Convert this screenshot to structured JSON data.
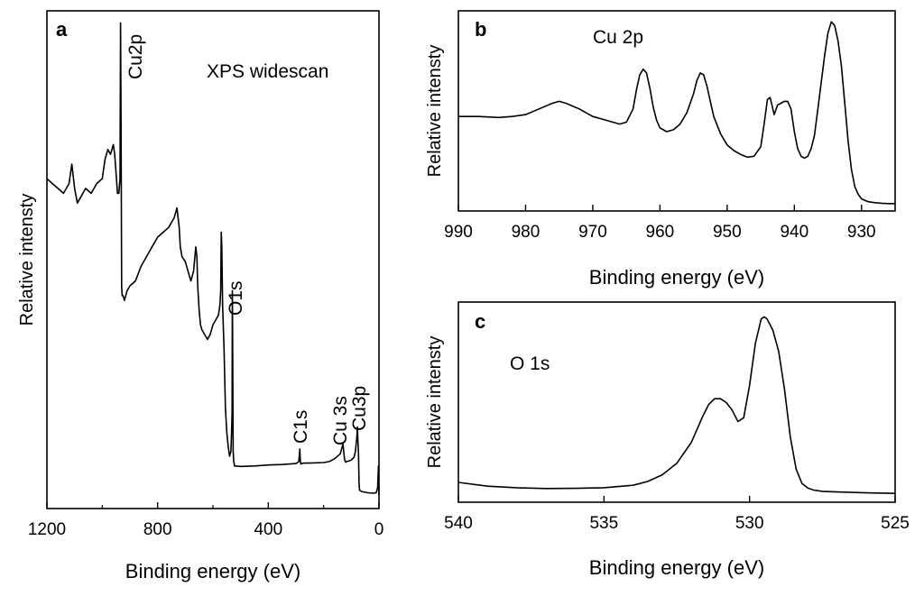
{
  "chart_data": [
    {
      "id": "a",
      "type": "line",
      "panel_label": "a",
      "title": "XPS widescan",
      "xlabel": "Binding energy (eV)",
      "ylabel": "Relative intensty",
      "xlim": [
        1200,
        0
      ],
      "ylim": [
        0,
        100
      ],
      "x_ticks": [
        1200,
        800,
        400,
        0
      ],
      "x_tick_labels": [
        "1200",
        "800",
        "400",
        "0"
      ],
      "annotations": [
        {
          "text": "Cu2p",
          "x": 935,
          "y": 96
        },
        {
          "text": "O1s",
          "x": 530,
          "y": 46
        },
        {
          "text": "C1s",
          "x": 285,
          "y": 8
        },
        {
          "text": "Cu 3s",
          "x": 123,
          "y": 8
        },
        {
          "text": "Cu3p",
          "x": 78,
          "y": 8
        }
      ],
      "series": [
        {
          "name": "widescan",
          "x": [
            1200,
            1180,
            1160,
            1140,
            1120,
            1110,
            1100,
            1090,
            1080,
            1060,
            1040,
            1020,
            1000,
            990,
            980,
            970,
            960,
            955,
            950,
            945,
            940,
            936,
            934,
            932,
            930,
            928,
            925,
            920,
            910,
            900,
            880,
            860,
            840,
            820,
            800,
            780,
            760,
            740,
            730,
            722,
            718,
            712,
            700,
            690,
            680,
            670,
            662,
            658,
            655,
            650,
            645,
            640,
            630,
            620,
            610,
            600,
            590,
            580,
            575,
            572,
            570,
            568,
            565,
            560,
            555,
            550,
            545,
            540,
            535,
            533,
            531,
            530,
            529,
            527,
            525,
            522,
            520,
            500,
            450,
            400,
            350,
            300,
            290,
            286,
            284,
            282,
            280,
            270,
            250,
            200,
            180,
            160,
            140,
            130,
            125,
            122,
            120,
            118,
            110,
            100,
            90,
            85,
            80,
            78,
            76,
            74,
            72,
            70,
            60,
            40,
            20,
            10,
            5,
            2,
            0
          ],
          "y": [
            67,
            66,
            65,
            64,
            66,
            70,
            65,
            62,
            63,
            65,
            64,
            66,
            67,
            71,
            73,
            72,
            74,
            72,
            68,
            64,
            64,
            67,
            99,
            77,
            45,
            43,
            43,
            42,
            44,
            45,
            46,
            49,
            51,
            53,
            55,
            56,
            57,
            59,
            61,
            57,
            53,
            51,
            50,
            48,
            46,
            48,
            53,
            51,
            45,
            40,
            37,
            36,
            35,
            34,
            35,
            37,
            38,
            39,
            41,
            44,
            56,
            53,
            41,
            32,
            20,
            15,
            12,
            10,
            11,
            14,
            19,
            44,
            34,
            11,
            9,
            8,
            8,
            7.9,
            8,
            8.2,
            8.3,
            8.5,
            8.9,
            11.5,
            8.8,
            8.4,
            8.5,
            8.6,
            8.6,
            8.7,
            8.9,
            9.5,
            10.5,
            12.5,
            9.5,
            8.9,
            8.8,
            8.9,
            9,
            9.2,
            9.8,
            11,
            14,
            16,
            13,
            10.5,
            4.5,
            3,
            2.7,
            2.5,
            2.4,
            2.5,
            3.5,
            8,
            2
          ]
        }
      ]
    },
    {
      "id": "b",
      "type": "line",
      "panel_label": "b",
      "title": "Cu 2p",
      "xlabel": "Binding energy (eV)",
      "ylabel": "Relative intensty",
      "xlim": [
        990,
        925
      ],
      "ylim": [
        0,
        100
      ],
      "x_ticks": [
        990,
        980,
        970,
        960,
        950,
        940,
        930
      ],
      "x_tick_labels": [
        "990",
        "980",
        "970",
        "960",
        "950",
        "940",
        "930"
      ],
      "series": [
        {
          "name": "Cu 2p",
          "x": [
            990,
            987,
            984,
            982,
            980,
            978,
            976,
            975,
            974,
            972,
            970,
            968,
            966,
            965,
            964,
            963.5,
            963,
            962.5,
            962,
            961.5,
            961,
            960.5,
            960,
            959,
            958,
            957,
            956,
            955,
            954.5,
            954,
            953.5,
            953,
            952.5,
            952,
            951,
            950,
            949,
            948,
            947,
            946,
            945,
            944.5,
            944,
            943.6,
            943.2,
            943,
            942.8,
            942.5,
            942,
            941.5,
            941,
            940.5,
            940,
            939.5,
            939,
            938.5,
            938,
            937.5,
            937,
            936.5,
            936,
            935.5,
            935,
            934.5,
            934,
            933.5,
            933,
            932.5,
            932,
            931.5,
            931,
            930.5,
            930,
            929,
            928,
            927,
            926,
            925
          ],
          "y": [
            48,
            48,
            47.5,
            48,
            49,
            52,
            55,
            56,
            55,
            52,
            48,
            46,
            44,
            45,
            52,
            62,
            70,
            73,
            71,
            63,
            53,
            46,
            42,
            40,
            41,
            44,
            50,
            60,
            67,
            71,
            70,
            64,
            56,
            48,
            39,
            33,
            30,
            28,
            26.5,
            27,
            32,
            44,
            57,
            58,
            52,
            49,
            51,
            54,
            55,
            56,
            56,
            52,
            40,
            31,
            27,
            26,
            27,
            31,
            38,
            52,
            66,
            80,
            92,
            98,
            96,
            88,
            75,
            55,
            35,
            20,
            11,
            7,
            4.5,
            3,
            2.5,
            2.2,
            2,
            2
          ]
        }
      ]
    },
    {
      "id": "c",
      "type": "line",
      "panel_label": "c",
      "title": "O 1s",
      "xlabel": "Binding energy (eV)",
      "ylabel": "Relative intensty",
      "xlim": [
        540,
        525
      ],
      "ylim": [
        0,
        100
      ],
      "x_ticks": [
        540,
        535,
        530,
        525
      ],
      "x_tick_labels": [
        "540",
        "535",
        "530",
        "525"
      ],
      "series": [
        {
          "name": "O 1s",
          "x": [
            540,
            539,
            538,
            537,
            536,
            535,
            534,
            533.5,
            533,
            532.5,
            532,
            531.8,
            531.6,
            531.4,
            531.2,
            531,
            530.8,
            530.6,
            530.4,
            530.2,
            530,
            529.8,
            529.6,
            529.5,
            529.4,
            529.2,
            529,
            528.8,
            528.6,
            528.4,
            528.2,
            528,
            527.8,
            527.5,
            527,
            526,
            525
          ],
          "y": [
            9,
            7,
            6.2,
            5.8,
            5.9,
            6.2,
            7.5,
            9.5,
            13,
            19,
            30,
            37,
            44,
            50,
            53,
            53,
            51,
            47,
            41,
            43,
            60,
            82,
            95,
            96,
            95,
            89,
            78,
            58,
            33,
            16,
            8.5,
            6,
            5,
            4.3,
            4,
            3.5,
            3.2
          ]
        }
      ]
    }
  ]
}
